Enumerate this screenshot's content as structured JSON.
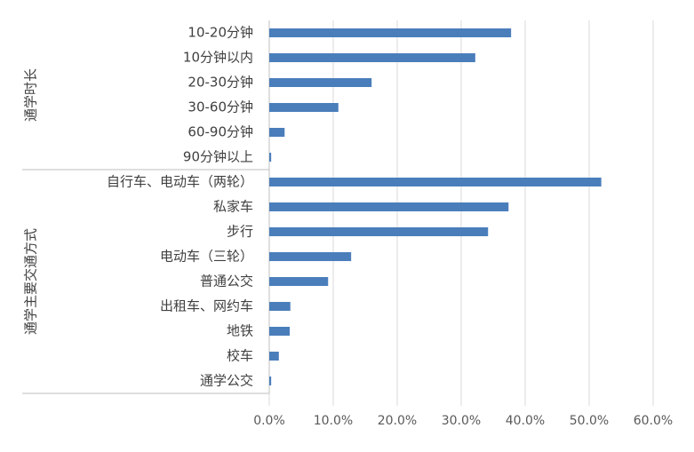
{
  "chart_data": {
    "type": "bar",
    "orientation": "horizontal",
    "color": "#4a7ebb",
    "groups": [
      {
        "label": "通学时长",
        "categories": [
          "10-20分钟",
          "10分钟以内",
          "20-30分钟",
          "30-60分钟",
          "60-90分钟",
          "90分钟以上"
        ],
        "values": [
          37.8,
          32.2,
          16.0,
          10.8,
          2.4,
          0.3
        ]
      },
      {
        "label": "通学主要交通方式",
        "categories": [
          "自行车、电动车（两轮）",
          "私家车",
          "步行",
          "电动车（三轮）",
          "普通公交",
          "出租车、网约车",
          "地铁",
          "校车",
          "通学公交"
        ],
        "values": [
          51.9,
          37.4,
          34.2,
          12.8,
          9.2,
          3.3,
          3.2,
          1.5,
          0.3
        ]
      }
    ],
    "xlim": [
      0,
      60
    ],
    "xticks": [
      {
        "value": 0,
        "label": "0.0%"
      },
      {
        "value": 10,
        "label": "10.0%"
      },
      {
        "value": 20,
        "label": "20.0%"
      },
      {
        "value": 30,
        "label": "30.0%"
      },
      {
        "value": 40,
        "label": "40.0%"
      },
      {
        "value": 50,
        "label": "50.0%"
      },
      {
        "value": 60,
        "label": "60.0%"
      }
    ],
    "grid": true
  }
}
